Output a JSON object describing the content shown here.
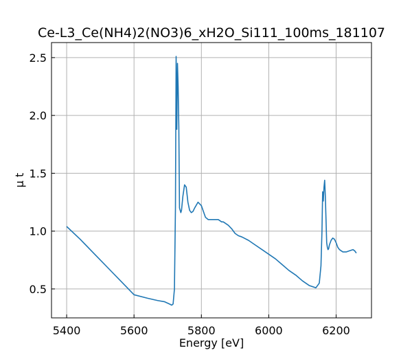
{
  "chart_data": {
    "type": "line",
    "title": "Ce-L3_Ce(NH4)2(NO3)6_xH2O_Si111_100ms_181107",
    "xlabel": "Energy [eV]",
    "ylabel": "μ t",
    "xlim": [
      5355,
      6305
    ],
    "ylim": [
      0.25,
      2.63
    ],
    "xticks": [
      5400,
      5600,
      5800,
      6000,
      6200
    ],
    "yticks": [
      0.5,
      1.0,
      1.5,
      2.0,
      2.5
    ],
    "xtick_labels": [
      "5400",
      "5600",
      "5800",
      "6000",
      "6200"
    ],
    "ytick_labels": [
      "0.5",
      "1.0",
      "1.5",
      "2.0",
      "2.5"
    ],
    "grid": true,
    "line_color": "#1f77b4",
    "series": [
      {
        "x": [
          5400,
          5440,
          5480,
          5520,
          5560,
          5600,
          5640,
          5670,
          5690,
          5705,
          5712,
          5716,
          5720,
          5723,
          5725,
          5727,
          5729,
          5731,
          5733,
          5735,
          5737,
          5739,
          5741,
          5745,
          5750,
          5755,
          5760,
          5765,
          5770,
          5775,
          5780,
          5790,
          5800,
          5806,
          5812,
          5820,
          5830,
          5840,
          5850,
          5855,
          5860,
          5865,
          5870,
          5880,
          5890,
          5900,
          5910,
          5920,
          5940,
          5960,
          5980,
          6000,
          6020,
          6040,
          6060,
          6080,
          6100,
          6120,
          6140,
          6150,
          6155,
          6158,
          6160,
          6162,
          6164,
          6166,
          6168,
          6170,
          6172,
          6174,
          6176,
          6178,
          6180,
          6185,
          6190,
          6195,
          6200,
          6205,
          6210,
          6215,
          6220,
          6230,
          6240,
          6250,
          6255,
          6260
        ],
        "y": [
          1.04,
          0.93,
          0.81,
          0.69,
          0.57,
          0.45,
          0.42,
          0.4,
          0.39,
          0.37,
          0.36,
          0.37,
          0.5,
          1.2,
          2.51,
          1.88,
          2.45,
          2.25,
          1.9,
          1.2,
          1.18,
          1.16,
          1.18,
          1.3,
          1.4,
          1.38,
          1.25,
          1.18,
          1.16,
          1.17,
          1.2,
          1.25,
          1.22,
          1.17,
          1.12,
          1.1,
          1.1,
          1.1,
          1.1,
          1.09,
          1.08,
          1.08,
          1.07,
          1.05,
          1.02,
          0.98,
          0.96,
          0.95,
          0.92,
          0.88,
          0.84,
          0.8,
          0.76,
          0.71,
          0.66,
          0.62,
          0.57,
          0.53,
          0.51,
          0.55,
          0.7,
          1.0,
          1.34,
          1.26,
          1.38,
          1.44,
          1.3,
          1.1,
          0.9,
          0.86,
          0.84,
          0.85,
          0.88,
          0.92,
          0.94,
          0.93,
          0.9,
          0.86,
          0.84,
          0.83,
          0.82,
          0.82,
          0.83,
          0.84,
          0.83,
          0.81
        ]
      }
    ]
  }
}
